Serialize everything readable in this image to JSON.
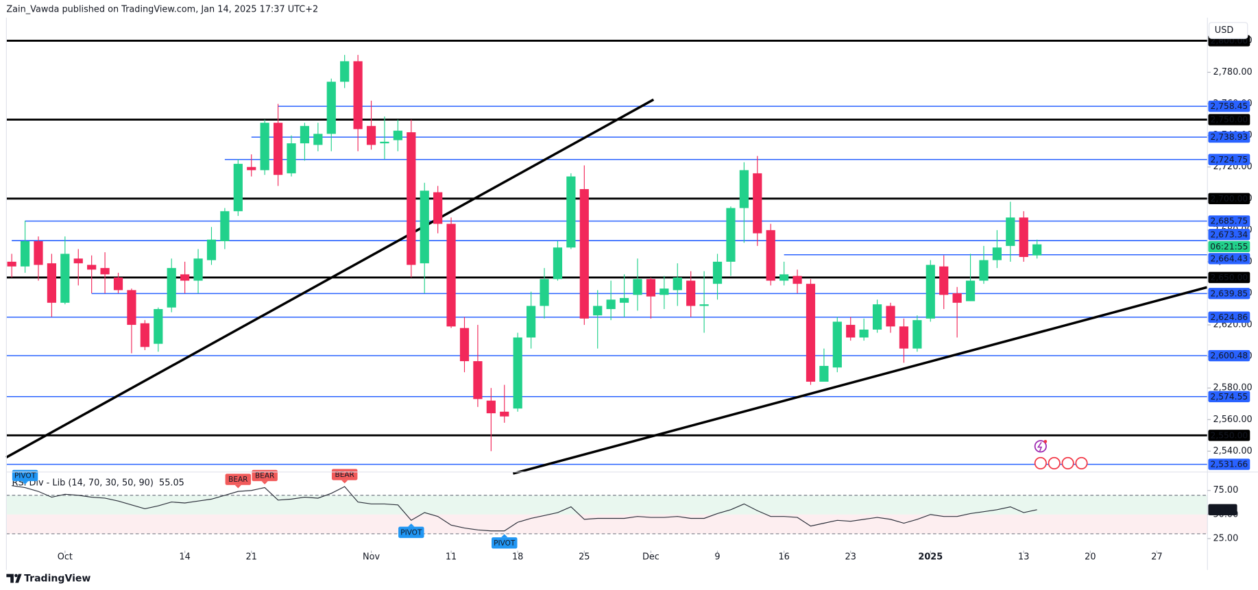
{
  "header": {
    "publisher": "Zain_Vawda published on TradingView.com, Jan 14, 2025 17:37 UTC+2"
  },
  "footer": {
    "brand": "TradingView"
  },
  "chart_data": [
    {
      "type": "candlestick",
      "currency": "USD",
      "countdown": "06:21:55",
      "up_color": "#22d18b",
      "down_color": "#f2285a",
      "open": [
        2660,
        2657,
        2673,
        2659,
        2634,
        2662,
        2658,
        2656,
        2650,
        2642,
        2621,
        2608,
        2631,
        2652,
        2648,
        2661,
        2673,
        2692,
        2720,
        2718,
        2748,
        2716,
        2735,
        2734,
        2741,
        2774,
        2787,
        2746,
        2735,
        2737,
        2742,
        2659,
        2704,
        2684,
        2618,
        2597,
        2572,
        2565,
        2567,
        2612,
        2632,
        2649,
        2669,
        2706,
        2626,
        2630,
        2634,
        2639,
        2649,
        2639,
        2642,
        2648,
        2632,
        2646,
        2660,
        2694,
        2716,
        2680,
        2648,
        2651,
        2646,
        2584,
        2593,
        2620,
        2612,
        2617,
        2632,
        2619,
        2605,
        2624,
        2657,
        2640,
        2635,
        2648,
        2661,
        2670,
        2688,
        2664
      ],
      "high": [
        2665,
        2686,
        2676,
        2665,
        2676,
        2668,
        2664,
        2666,
        2653,
        2643,
        2623,
        2631,
        2662,
        2660,
        2668,
        2682,
        2694,
        2725,
        2728,
        2750,
        2760,
        2740,
        2748,
        2748,
        2776,
        2791,
        2791,
        2762,
        2752,
        2750,
        2750,
        2710,
        2708,
        2688,
        2625,
        2620,
        2580,
        2582,
        2615,
        2641,
        2656,
        2673,
        2716,
        2721,
        2642,
        2648,
        2652,
        2662,
        2650,
        2651,
        2659,
        2654,
        2654,
        2665,
        2695,
        2723,
        2727,
        2684,
        2660,
        2655,
        2649,
        2605,
        2625,
        2625,
        2624,
        2636,
        2634,
        2624,
        2626,
        2661,
        2664,
        2644,
        2665,
        2670,
        2680,
        2698,
        2692,
        2674
      ],
      "low": [
        2650,
        2653,
        2648,
        2625,
        2633,
        2645,
        2640,
        2640,
        2640,
        2602,
        2604,
        2603,
        2628,
        2640,
        2640,
        2658,
        2668,
        2689,
        2714,
        2715,
        2708,
        2714,
        2724,
        2730,
        2730,
        2770,
        2730,
        2731,
        2725,
        2730,
        2650,
        2640,
        2678,
        2618,
        2590,
        2568,
        2540,
        2558,
        2565,
        2605,
        2624,
        2648,
        2668,
        2620,
        2605,
        2623,
        2625,
        2629,
        2624,
        2630,
        2632,
        2625,
        2615,
        2636,
        2651,
        2672,
        2670,
        2645,
        2645,
        2640,
        2582,
        2584,
        2590,
        2610,
        2610,
        2615,
        2615,
        2596,
        2603,
        2622,
        2630,
        2612,
        2635,
        2646,
        2656,
        2660,
        2660,
        2662
      ],
      "close": [
        2657,
        2673,
        2658,
        2634,
        2665,
        2659,
        2655,
        2652,
        2642,
        2620,
        2606,
        2630,
        2656,
        2648,
        2662,
        2674,
        2692,
        2722,
        2718,
        2748,
        2715,
        2735,
        2746,
        2741,
        2774,
        2787,
        2744,
        2734,
        2736,
        2743,
        2658,
        2705,
        2684,
        2619,
        2597,
        2573,
        2564,
        2562,
        2612,
        2632,
        2649,
        2669,
        2714,
        2624,
        2632,
        2636,
        2637,
        2649,
        2638,
        2643,
        2650,
        2632,
        2633,
        2660,
        2694,
        2718,
        2678,
        2648,
        2652,
        2646,
        2584,
        2594,
        2622,
        2612,
        2617,
        2633,
        2619,
        2605,
        2623,
        2658,
        2639,
        2634,
        2648,
        2661,
        2669,
        2688,
        2663,
        2671
      ],
      "xlim": [
        -0.4,
        89.8
      ],
      "xticks": [
        {
          "value": 4,
          "label": "Oct"
        },
        {
          "value": 13,
          "label": "14"
        },
        {
          "value": 18,
          "label": "21"
        },
        {
          "value": 27,
          "label": "Nov"
        },
        {
          "value": 33,
          "label": "11"
        },
        {
          "value": 38,
          "label": "18"
        },
        {
          "value": 43,
          "label": "25"
        },
        {
          "value": 48,
          "label": "Dec"
        },
        {
          "value": 53,
          "label": "9"
        },
        {
          "value": 58,
          "label": "16"
        },
        {
          "value": 63,
          "label": "23"
        },
        {
          "value": 69,
          "label": "2025"
        },
        {
          "value": 76,
          "label": "13"
        },
        {
          "value": 81,
          "label": "20"
        },
        {
          "value": 86,
          "label": "27"
        }
      ],
      "ylim": [
        2527.3,
        2814.6
      ],
      "yticks": [
        {
          "value": 2540,
          "label": "2,540.00"
        },
        {
          "value": 2560,
          "label": "2,560.00"
        },
        {
          "value": 2580,
          "label": "2,580.00"
        },
        {
          "value": 2600,
          "label": "2,600.00"
        },
        {
          "value": 2620,
          "label": "2,620.00"
        },
        {
          "value": 2640,
          "label": "2,640.00"
        },
        {
          "value": 2660,
          "label": "2,660.00"
        },
        {
          "value": 2680,
          "label": "2,680.00"
        },
        {
          "value": 2700,
          "label": "2,700.00"
        },
        {
          "value": 2720,
          "label": "2,720.00"
        },
        {
          "value": 2740,
          "label": "2,740.00"
        },
        {
          "value": 2760,
          "label": "2,760.00"
        },
        {
          "value": 2780,
          "label": "2,780.00"
        },
        {
          "value": 2800,
          "label": "2,800.00"
        }
      ],
      "levels": [
        {
          "value": 2800,
          "label": "2,800.00",
          "color": "#000000"
        },
        {
          "value": 2758.45,
          "label": "2,758.45",
          "color": "#2962ff",
          "from": 20
        },
        {
          "value": 2750,
          "label": "2,750.00",
          "color": "#000000"
        },
        {
          "value": 2738.93,
          "label": "2,738.93",
          "color": "#2962ff",
          "from": 18
        },
        {
          "value": 2724.75,
          "label": "2,724.75",
          "color": "#2962ff",
          "from": 16
        },
        {
          "value": 2700,
          "label": "2,700.00",
          "color": "#000000"
        },
        {
          "value": 2685.75,
          "label": "2,685.75",
          "color": "#2962ff",
          "from": 1
        },
        {
          "value": 2673.34,
          "label": "2,673.34",
          "color": "#2962ff",
          "from": 0
        },
        {
          "value": 2664.43,
          "label": "2,664.43",
          "color": "#2962ff",
          "from": 58
        },
        {
          "value": 2650,
          "label": "2,650.00",
          "color": "#000000"
        },
        {
          "value": 2639.85,
          "label": "2,639.85",
          "color": "#2962ff",
          "from": 6
        },
        {
          "value": 2624.86,
          "label": "2,624.86",
          "color": "#2962ff"
        },
        {
          "value": 2600.48,
          "label": "2,600.48",
          "color": "#2962ff"
        },
        {
          "value": 2574.55,
          "label": "2,574.55",
          "color": "#2962ff"
        },
        {
          "value": 2550,
          "label": "2,550.00",
          "color": "#000000"
        },
        {
          "value": 2531.66,
          "label": "2,531.66",
          "color": "#2962ff"
        }
      ],
      "trendlines": [
        {
          "x": [
            -0.42,
            48.2
          ],
          "y": [
            2536,
            2762.7
          ]
        },
        {
          "x": [
            37.65,
            89.76
          ],
          "y": [
            2525.8,
            2643.8
          ]
        }
      ]
    },
    {
      "type": "line",
      "title": "RSI Div - Lib (14, 70, 30, 50, 90)",
      "color": "#2a2e39",
      "values": [
        80,
        78,
        74,
        68,
        71,
        70,
        68,
        67,
        64,
        60,
        56,
        59,
        63,
        62,
        64,
        66,
        70,
        74,
        75,
        78,
        65,
        66,
        68,
        67,
        72,
        79,
        63,
        61,
        61,
        60,
        44,
        52,
        48,
        39,
        36,
        34,
        33,
        33,
        42,
        46,
        49,
        52,
        58,
        45,
        46,
        46,
        46,
        48,
        47,
        47,
        48,
        46,
        46,
        51,
        55,
        61,
        54,
        48,
        48,
        47,
        38,
        41,
        44,
        43,
        45,
        47,
        45,
        41,
        45,
        50,
        48,
        48,
        51,
        53,
        55,
        58,
        52,
        55.05
      ],
      "ylim": [
        13.3,
        92.5
      ],
      "yticks": [
        {
          "value": 25,
          "label": "25.00"
        },
        {
          "value": 50,
          "label": "50.00"
        },
        {
          "value": 75,
          "label": "75.00"
        }
      ],
      "overbought": 70,
      "oversold": 30,
      "signals": [
        {
          "x": 1,
          "label": "PIVOT",
          "position": "above",
          "color": "#2196f3"
        },
        {
          "x": 17,
          "label": "BEAR",
          "position": "above",
          "color": "#f15b5b"
        },
        {
          "x": 19,
          "label": "BEAR",
          "position": "above",
          "color": "#f15b5b"
        },
        {
          "x": 25,
          "label": "BEAR",
          "position": "above",
          "color": "#f15b5b"
        },
        {
          "x": 30,
          "label": "PIVOT",
          "position": "below",
          "color": "#2196f3"
        },
        {
          "x": 37,
          "label": "PIVOT",
          "position": "below",
          "color": "#2196f3"
        }
      ]
    }
  ]
}
